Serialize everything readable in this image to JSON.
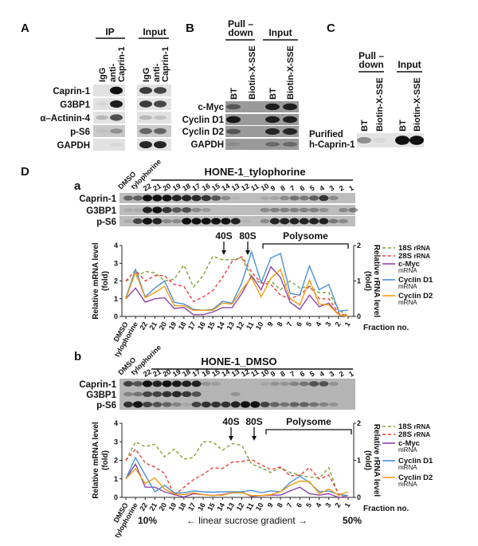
{
  "panel_A": {
    "label": "A",
    "ip_header": "IP",
    "input_header": "Input",
    "lanes": [
      "IgG",
      "anti-",
      "Caprin-1"
    ],
    "rows": [
      {
        "name": "Caprin-1",
        "intensity": [
          0,
          1,
          0.8,
          0.75
        ]
      },
      {
        "name": "G3BP1",
        "intensity": [
          0.05,
          0.95,
          0.8,
          0.75
        ]
      },
      {
        "name": "α–Actinin-4",
        "intensity": [
          0.2,
          0.7,
          0.2,
          0.15
        ]
      },
      {
        "name": "p-S6",
        "intensity": [
          0.05,
          0.3,
          0.55,
          0.55
        ]
      },
      {
        "name": "GAPDH",
        "intensity": [
          0,
          0.05,
          0.9,
          0.9
        ]
      }
    ]
  },
  "panel_B": {
    "label": "B",
    "pulldown_header_1": "Pull –",
    "pulldown_header_2": "down",
    "input_header": "Input",
    "lanes": [
      "BT",
      "Biotin-X-SSE"
    ],
    "rows": [
      {
        "name": "c-Myc",
        "intensity": [
          0.5,
          0,
          0.9,
          0.9
        ]
      },
      {
        "name": "Cyclin D1",
        "intensity": [
          0.95,
          0,
          0.9,
          0.9
        ]
      },
      {
        "name": "Cyclin D2",
        "intensity": [
          0.5,
          0,
          0.85,
          0.85
        ]
      },
      {
        "name": "GAPDH",
        "intensity": [
          0.1,
          0,
          0.35,
          0.35
        ]
      }
    ]
  },
  "panel_C": {
    "label": "C",
    "pulldown_header_1": "Pull –",
    "pulldown_header_2": "down",
    "input_header": "Input",
    "lanes": [
      "BT",
      "Biotin-X-SSE"
    ],
    "row_label_1": "Purified",
    "row_label_2": "h-Caprin-1",
    "intensity": [
      0.4,
      0.05,
      1,
      1
    ]
  },
  "panel_D": {
    "label": "D",
    "fractions": [
      "DMSO",
      "tylophorine",
      "22",
      "21",
      "20",
      "19",
      "18",
      "17",
      "16",
      "15",
      "14",
      "13",
      "12",
      "11",
      "10",
      "9",
      "8",
      "7",
      "6",
      "5",
      "4",
      "3",
      "2",
      "1"
    ],
    "blot_a": {
      "label": "a",
      "title": "HONE-1_tylophorine",
      "rows": [
        {
          "name": "Caprin-1",
          "intensity": [
            0.5,
            0.55,
            1,
            1,
            1,
            0.9,
            0.9,
            0.85,
            0.8,
            0.6,
            0.3,
            0.05,
            0,
            0,
            0.1,
            0.15,
            0.3,
            0.45,
            0.4,
            0.55,
            0.8,
            0.3,
            0,
            0
          ]
        },
        {
          "name": "G3BP1",
          "intensity": [
            0.1,
            0.1,
            0.9,
            1,
            0.8,
            0.6,
            0.65,
            0.3,
            0.2,
            0,
            0,
            0,
            0,
            0,
            0.3,
            0.35,
            0.35,
            0.35,
            0.35,
            0.35,
            0.25,
            0,
            0.3,
            0.4
          ]
        },
        {
          "name": "p-S6",
          "intensity": [
            0.1,
            0.7,
            1,
            0.9,
            0.3,
            0.3,
            1,
            1,
            1,
            1,
            1,
            0.9,
            0.05,
            0,
            0.3,
            0.9,
            0.9,
            0.9,
            0.9,
            0.9,
            0.9,
            0.4,
            0.3,
            0
          ]
        }
      ]
    },
    "blot_b": {
      "label": "b",
      "title": "HONE-1_DMSO",
      "rows": [
        {
          "name": "Caprin-1",
          "intensity": [
            0.7,
            0.6,
            1,
            0.9,
            1,
            0.95,
            0.9,
            0.9,
            0.2,
            0.15,
            0,
            0,
            0,
            0,
            0.1,
            0.2,
            0.2,
            0.3,
            0.4,
            0.6,
            0.6,
            0.2,
            0,
            0
          ]
        },
        {
          "name": "G3BP1",
          "intensity": [
            0.3,
            0.4,
            0.7,
            0.7,
            0.8,
            0.85,
            0.75,
            0.6,
            0,
            0,
            0,
            0.2,
            0,
            0,
            0,
            0,
            0,
            0,
            0,
            0,
            0,
            0,
            0,
            0
          ]
        },
        {
          "name": "p-S6",
          "intensity": [
            0.8,
            1,
            0.7,
            0.6,
            0.5,
            0.3,
            0.1,
            0.7,
            0.8,
            0.8,
            0.8,
            0.9,
            1,
            1,
            0.7,
            0.5,
            0.4,
            0.5,
            0.5,
            0.4,
            0.3,
            0.2,
            0,
            0
          ]
        }
      ]
    },
    "annotations": {
      "s40": "40S",
      "s80": "80S",
      "polysome": "Polysome",
      "fraction_no": "Fraction no."
    },
    "gradient": {
      "start": "10%",
      "text": "←   linear sucrose gradient   →",
      "end": "50%"
    }
  },
  "chart_data": [
    {
      "type": "line",
      "panel": "a",
      "categories": [
        "DMSO",
        "tylophorine",
        "22",
        "21",
        "20",
        "19",
        "18",
        "17",
        "16",
        "15",
        "14",
        "13",
        "12",
        "11",
        "10",
        "9",
        "8",
        "7",
        "6",
        "5",
        "4",
        "3",
        "2",
        "1"
      ],
      "xlabel": "Fraction no.",
      "ylabel": "Relative mRNA level (fold)",
      "ylabel_right": "Relative rRNA level (fold)",
      "ylim": [
        0,
        4
      ],
      "ylim_right": [
        0,
        2
      ],
      "legend": "right",
      "series": [
        {
          "name": "18S",
          "unit": "rRNA",
          "axis": "right",
          "dashed": true,
          "color": "#7fa330",
          "values": [
            1.0,
            1.1,
            1.27,
            1.23,
            1.0,
            1.05,
            1.45,
            0.83,
            1.15,
            1.7,
            1.6,
            1.6,
            1.65,
            1.1,
            0.93,
            1.0,
            0.75,
            1.0,
            0.8,
            0.85,
            0.67,
            0.67,
            0.2,
            0.0
          ]
        },
        {
          "name": "28S",
          "unit": "rRNA",
          "axis": "right",
          "dashed": true,
          "color": "#f23a3a",
          "values": [
            1.0,
            1.3,
            1.0,
            1.15,
            1.15,
            0.9,
            0.85,
            0.42,
            0.55,
            0.73,
            1.1,
            1.55,
            1.68,
            1.25,
            0.95,
            0.9,
            0.6,
            0.5,
            0.6,
            0.85,
            0.5,
            0.5,
            0.1,
            0.0
          ]
        },
        {
          "name": "c-Myc",
          "unit": "mRNA",
          "axis": "left",
          "dashed": false,
          "color": "#8e44ad",
          "values": [
            1.0,
            1.6,
            0.8,
            1.0,
            1.05,
            0.45,
            0.5,
            0.1,
            0.1,
            0.25,
            0.5,
            0.5,
            1.3,
            2.3,
            1.5,
            2.8,
            2.2,
            0.8,
            0.4,
            1.2,
            0.55,
            0.75,
            0.1,
            0.0
          ]
        },
        {
          "name": "Cyclin D1",
          "unit": "mRNA",
          "axis": "left",
          "dashed": false,
          "color": "#4a90d9",
          "values": [
            1.05,
            2.65,
            1.1,
            1.6,
            2.0,
            0.8,
            0.7,
            0.4,
            0.35,
            0.4,
            0.85,
            0.75,
            1.9,
            3.65,
            1.9,
            3.3,
            3.55,
            1.3,
            1.2,
            2.85,
            1.5,
            1.8,
            0.3,
            0.35
          ]
        },
        {
          "name": "Cyclin D2",
          "unit": "mRNA",
          "axis": "left",
          "dashed": false,
          "color": "#f39c12",
          "values": [
            1.0,
            2.5,
            1.05,
            1.35,
            1.7,
            0.6,
            0.6,
            0.35,
            0.35,
            0.35,
            0.75,
            0.7,
            1.5,
            2.2,
            1.1,
            2.15,
            2.65,
            1.0,
            0.65,
            2.05,
            0.7,
            0.65,
            0.1,
            0.0
          ]
        }
      ]
    },
    {
      "type": "line",
      "panel": "b",
      "categories": [
        "DMSO",
        "tylophorine",
        "22",
        "21",
        "20",
        "19",
        "18",
        "17",
        "16",
        "15",
        "14",
        "13",
        "12",
        "11",
        "10",
        "9",
        "8",
        "7",
        "6",
        "5",
        "4",
        "3",
        "2",
        "1"
      ],
      "xlabel": "Fraction no.",
      "ylabel": "Relative mRNA level (fold)",
      "ylabel_right": "Relative rRNA level (fold)",
      "ylim": [
        0,
        4
      ],
      "ylim_right": [
        0,
        2
      ],
      "legend": "right",
      "series": [
        {
          "name": "18S",
          "unit": "rRNA",
          "axis": "right",
          "dashed": true,
          "color": "#7fa330",
          "values": [
            1.0,
            1.5,
            1.37,
            1.43,
            1.1,
            1.3,
            1.03,
            1.08,
            1.5,
            1.5,
            1.27,
            1.45,
            1.4,
            0.9,
            0.8,
            0.67,
            0.8,
            0.67,
            0.6,
            0.55,
            0.52,
            0.8,
            0.05,
            0.0
          ]
        },
        {
          "name": "28S",
          "unit": "rRNA",
          "axis": "right",
          "dashed": true,
          "color": "#f23a3a",
          "values": [
            1.0,
            1.3,
            0.93,
            0.82,
            0.65,
            0.05,
            0.27,
            0.48,
            0.62,
            0.8,
            0.78,
            0.95,
            0.97,
            1.02,
            0.88,
            0.75,
            0.82,
            0.58,
            0.6,
            0.8,
            0.5,
            0.6,
            0.1,
            0.02
          ]
        },
        {
          "name": "c-Myc",
          "unit": "mRNA",
          "axis": "left",
          "dashed": false,
          "color": "#8e44ad",
          "values": [
            1.0,
            1.8,
            0.55,
            0.55,
            0.3,
            0.15,
            0.02,
            0.2,
            0.15,
            0.1,
            0.15,
            0.25,
            0.28,
            0.05,
            0.1,
            0.12,
            0.12,
            0.35,
            0.55,
            0.2,
            0.12,
            0.2,
            0.0,
            0.0
          ]
        },
        {
          "name": "Cyclin D1",
          "unit": "mRNA",
          "axis": "left",
          "dashed": false,
          "color": "#4a90d9",
          "values": [
            1.0,
            2.15,
            1.2,
            0.3,
            0.65,
            0.25,
            0.25,
            0.35,
            0.3,
            0.28,
            0.3,
            0.3,
            0.3,
            0.38,
            0.25,
            0.35,
            0.3,
            0.8,
            1.15,
            0.8,
            0.3,
            0.35,
            0.15,
            0.1
          ]
        },
        {
          "name": "Cyclin D2",
          "unit": "mRNA",
          "axis": "left",
          "dashed": false,
          "color": "#f39c12",
          "values": [
            1.0,
            1.55,
            0.75,
            1.05,
            0.45,
            0.2,
            0.15,
            0.25,
            0.15,
            0.1,
            0.12,
            0.25,
            0.25,
            0.1,
            0.1,
            0.15,
            0.3,
            0.65,
            0.88,
            0.85,
            0.2,
            0.45,
            0.12,
            0.3
          ]
        }
      ]
    }
  ]
}
